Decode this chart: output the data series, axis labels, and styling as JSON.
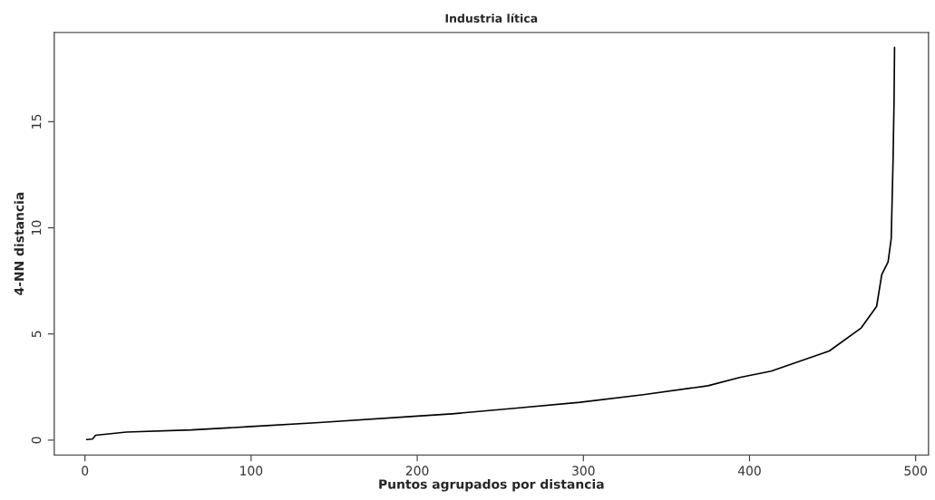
{
  "chart_data": {
    "type": "line",
    "title": "Industria lítica",
    "xlabel": "Puntos agrupados por distancia",
    "ylabel": "4-NN distancia",
    "x": [
      1,
      4.5,
      6.4,
      25,
      64,
      100,
      141,
      200,
      221,
      260,
      298,
      336,
      375,
      394,
      413,
      448,
      467,
      476.5,
      479.6,
      483.4,
      485.3,
      486.4,
      487,
      487.3
    ],
    "series": [
      {
        "color": "#000000",
        "values": [
          0.03,
          0.05,
          0.23,
          0.38,
          0.48,
          0.64,
          0.83,
          1.13,
          1.24,
          1.51,
          1.78,
          2.14,
          2.56,
          2.95,
          3.25,
          4.2,
          5.27,
          6.3,
          7.8,
          8.4,
          9.5,
          13.2,
          16.0,
          18.5
        ]
      }
    ],
    "xlim": [
      -18.5,
      507.7
    ],
    "ylim": [
      -0.7,
      19.2
    ],
    "xticks": [
      0,
      100,
      200,
      300,
      400,
      500
    ],
    "yticks": [
      0,
      5,
      10,
      15
    ],
    "grid": false,
    "legend": false,
    "marker": "none",
    "line_style": "solid"
  }
}
